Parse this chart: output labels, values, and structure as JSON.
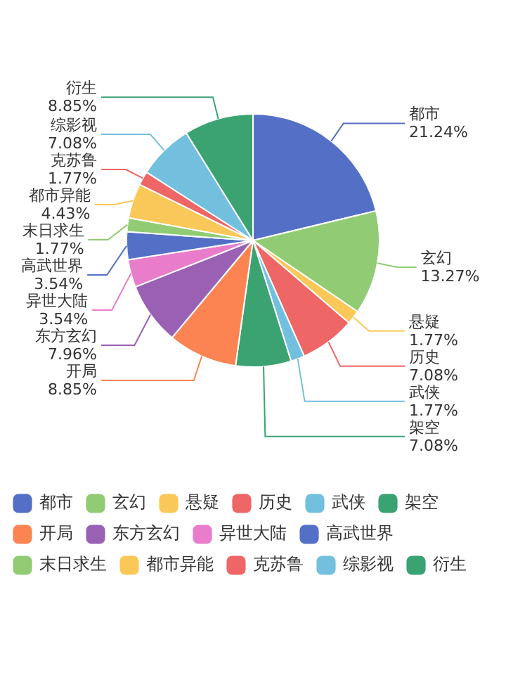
{
  "chart_data": {
    "type": "pie",
    "categories": [
      "都市",
      "玄幻",
      "悬疑",
      "历史",
      "武侠",
      "架空",
      "开局",
      "东方玄幻",
      "异世大陆",
      "高武世界",
      "末日求生",
      "都市异能",
      "克苏鲁",
      "综影视",
      "衍生"
    ],
    "values": [
      21.24,
      13.27,
      1.77,
      7.08,
      1.77,
      7.08,
      8.85,
      7.96,
      3.54,
      3.54,
      1.77,
      4.43,
      1.77,
      7.08,
      8.85
    ],
    "value_labels": [
      "21.24%",
      "13.27%",
      "1.77%",
      "7.08%",
      "1.77%",
      "7.08%",
      "8.85%",
      "7.96%",
      "3.54%",
      "3.54%",
      "1.77%",
      "4.43%",
      "1.77%",
      "7.08%",
      "8.85%"
    ],
    "colors": [
      "#5470c6",
      "#91cc75",
      "#fac858",
      "#ee6666",
      "#73c0de",
      "#3ba272",
      "#fc8452",
      "#9a60b4",
      "#ea7ccc",
      "#5470c6",
      "#91cc75",
      "#fac858",
      "#ee6666",
      "#73c0de",
      "#3ba272"
    ],
    "legend": "bottom"
  }
}
